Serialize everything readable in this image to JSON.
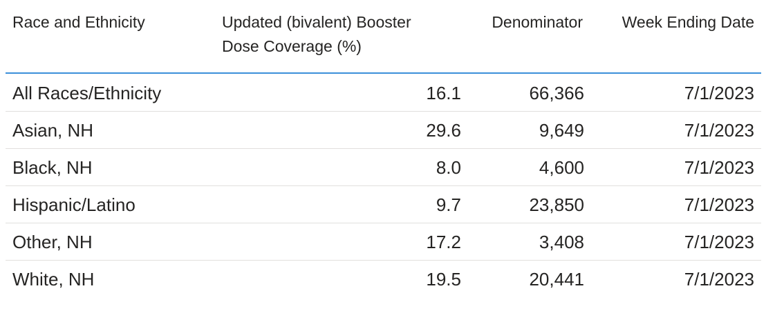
{
  "table": {
    "headers": [
      "Race and Ethnicity",
      "Updated (bivalent) Booster Dose Coverage (%)",
      "Denominator",
      "Week Ending Date"
    ],
    "rows": [
      [
        "All Races/Ethnicity",
        "16.1",
        "66,366",
        "7/1/2023"
      ],
      [
        "Asian, NH",
        "29.6",
        "9,649",
        "7/1/2023"
      ],
      [
        "Black, NH",
        "8.0",
        "4,600",
        "7/1/2023"
      ],
      [
        "Hispanic/Latino",
        "9.7",
        "23,850",
        "7/1/2023"
      ],
      [
        "Other, NH",
        "17.2",
        "3,408",
        "7/1/2023"
      ],
      [
        "White, NH",
        "19.5",
        "20,441",
        "7/1/2023"
      ]
    ]
  }
}
